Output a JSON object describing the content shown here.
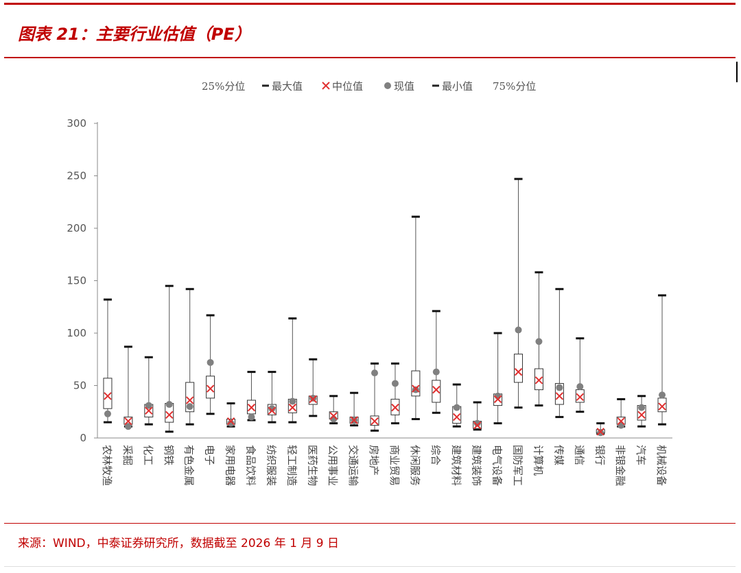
{
  "header": {
    "title": "图表 21：主要行业估值（PE）"
  },
  "footer": {
    "source": "来源：WIND，中泰证券研究所，数据截至 2026 年 1 月 9 日"
  },
  "colors": {
    "brand": "#c00000",
    "box_stroke": "#333333",
    "whisker": "#555555",
    "median_marker": "#e03030",
    "current_dot": "#808080",
    "tick": "#555555"
  },
  "chart_data": {
    "type": "boxplot",
    "title": "",
    "xlabel": "",
    "ylabel": "",
    "ylim": [
      0,
      300
    ],
    "yticks": [
      0,
      50,
      100,
      150,
      200,
      250,
      300
    ],
    "legend": {
      "placement": "top",
      "items": [
        {
          "label": "25%分位",
          "symbol": "none"
        },
        {
          "label": "最大值",
          "symbol": "dash"
        },
        {
          "label": "中位值",
          "symbol": "cross"
        },
        {
          "label": "现值",
          "symbol": "dot"
        },
        {
          "label": "最小值",
          "symbol": "dash"
        },
        {
          "label": "75%分位",
          "symbol": "none"
        }
      ]
    },
    "categories": [
      "农林牧渔",
      "采掘",
      "化工",
      "钢铁",
      "有色金属",
      "电子",
      "家用电器",
      "食品饮料",
      "纺织服装",
      "轻工制造",
      "医药生物",
      "公用事业",
      "交通运输",
      "房地产",
      "商业贸易",
      "休闲服务",
      "综合",
      "建筑材料",
      "建筑装饰",
      "电气设备",
      "国防军工",
      "计算机",
      "传媒",
      "通信",
      "银行",
      "非银金融",
      "汽车",
      "机械设备"
    ],
    "series": [
      {
        "name": "最大值",
        "values": [
          132,
          87,
          77,
          145,
          142,
          117,
          33,
          63,
          63,
          114,
          75,
          40,
          43,
          71,
          71,
          211,
          121,
          51,
          34,
          100,
          247,
          158,
          142,
          95,
          14,
          37,
          40,
          136
        ]
      },
      {
        "name": "75%分位",
        "values": [
          57,
          20,
          32,
          33,
          53,
          59,
          18,
          36,
          32,
          37,
          40,
          25,
          20,
          21,
          37,
          64,
          55,
          30,
          16,
          42,
          80,
          66,
          52,
          46,
          8,
          20,
          31,
          38
        ]
      },
      {
        "name": "中位值",
        "values": [
          40,
          16,
          26,
          22,
          36,
          47,
          16,
          29,
          26,
          29,
          37,
          21,
          17,
          16,
          29,
          47,
          46,
          20,
          12,
          37,
          63,
          55,
          40,
          39,
          6,
          16,
          22,
          30
        ]
      },
      {
        "name": "25%分位",
        "values": [
          28,
          13,
          20,
          15,
          25,
          38,
          13,
          23,
          22,
          24,
          32,
          18,
          14,
          12,
          22,
          40,
          34,
          14,
          9,
          31,
          53,
          46,
          32,
          34,
          5,
          13,
          17,
          25
        ]
      },
      {
        "name": "最小值",
        "values": [
          15,
          11,
          13,
          6,
          13,
          23,
          11,
          17,
          15,
          15,
          21,
          14,
          12,
          7,
          14,
          18,
          24,
          11,
          8,
          14,
          29,
          31,
          20,
          25,
          4,
          11,
          11,
          13
        ]
      },
      {
        "name": "现值",
        "values": [
          23,
          11,
          31,
          32,
          30,
          72,
          14,
          20,
          28,
          35,
          38,
          18,
          17,
          62,
          52,
          46,
          63,
          29,
          14,
          40,
          103,
          92,
          48,
          49,
          5,
          12,
          29,
          41
        ]
      }
    ]
  }
}
